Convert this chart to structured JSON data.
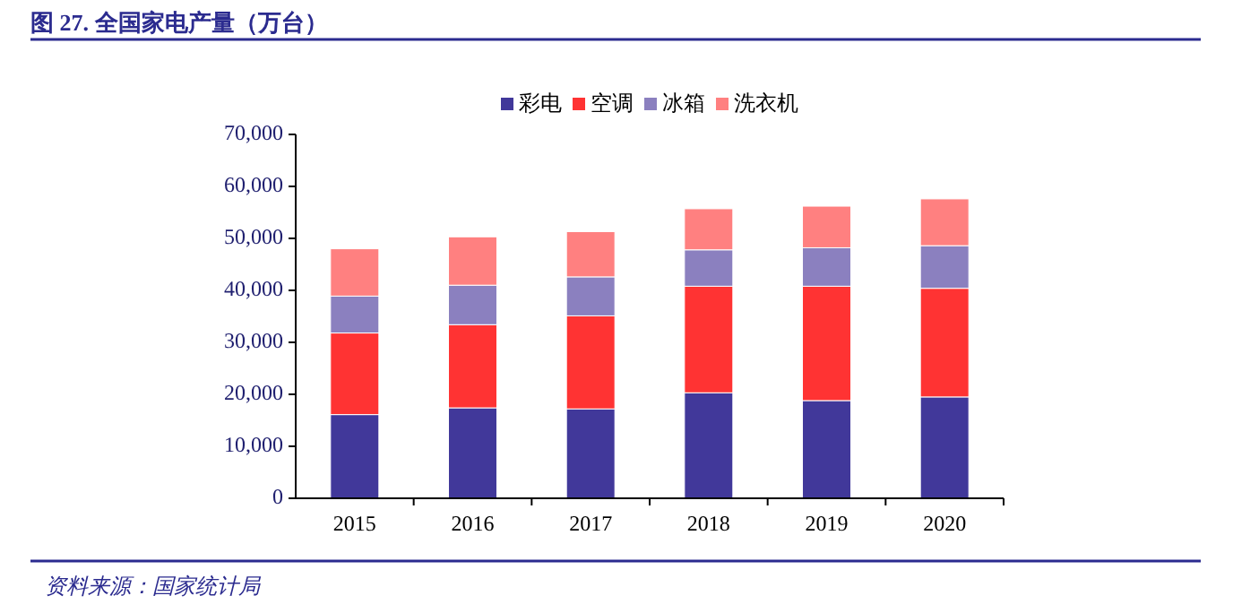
{
  "chart_data": {
    "type": "bar",
    "stacked": true,
    "title": "图 27. 全国家电产量（万台）",
    "annotations": [
      "资料来源：国家统计局"
    ],
    "categories": [
      "2015",
      "2016",
      "2017",
      "2018",
      "2019",
      "2020"
    ],
    "series": [
      {
        "name": "彩电",
        "color": "#41389a",
        "values": [
          16100,
          17400,
          17200,
          20300,
          18800,
          19500
        ]
      },
      {
        "name": "空调",
        "color": "#ff3333",
        "values": [
          15700,
          16000,
          17900,
          20500,
          22000,
          20900
        ]
      },
      {
        "name": "冰箱",
        "color": "#8b80bf",
        "values": [
          7100,
          7600,
          7500,
          7000,
          7400,
          8200
        ]
      },
      {
        "name": "洗衣机",
        "color": "#ff8080",
        "values": [
          9100,
          9300,
          8700,
          7900,
          8000,
          9000
        ]
      }
    ],
    "ylim": [
      0,
      70000
    ],
    "yticks": [
      0,
      {
        "value": 10000,
        "label": "10,000"
      },
      {
        "value": 20000,
        "label": "20,000"
      },
      {
        "value": 30000,
        "label": "30,000"
      },
      {
        "value": 40000,
        "label": "40,000"
      },
      {
        "value": 50000,
        "label": "50,000"
      },
      {
        "value": 60000,
        "label": "60,000"
      },
      {
        "value": 70000,
        "label": "70,000"
      }
    ],
    "legend": "top",
    "grid": false
  }
}
